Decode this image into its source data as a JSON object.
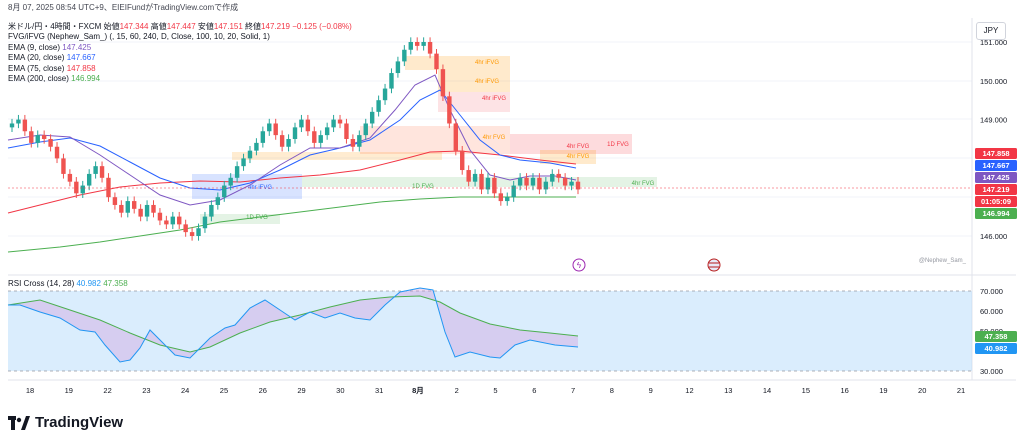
{
  "header": {
    "datetime_line": "8月 07, 2025 08:54 UTC+9、EIEIFundがTradingView.comで作成"
  },
  "legend": {
    "symbol": "米ドル/円・4時間・FXCM",
    "open_label": "始値",
    "open": "147.344",
    "high_label": "高値",
    "high": "147.447",
    "low_label": "安値",
    "low": "147.151",
    "close_label": "終値",
    "close": "147.219",
    "change": "−0.125 (−0.08%)",
    "fvg_line": "FVG/iFVG (Nephew_Sam_) (, 15, 60, 240, D, Close, 100, 10, 20, Solid, 1)",
    "ema9_label": "EMA (9, close)",
    "ema9": "147.425",
    "ema20_label": "EMA (20, close)",
    "ema20": "147.667",
    "ema75_label": "EMA (75, close)",
    "ema75": "147.858",
    "ema200_label": "EMA (200, close)",
    "ema200": "146.994"
  },
  "currency": "JPY",
  "price_axis": {
    "ticks": [
      {
        "label": "151.000",
        "value": 151.0
      },
      {
        "label": "150.000",
        "value": 150.0
      },
      {
        "label": "149.000",
        "value": 149.0
      },
      {
        "label": "146.000",
        "value": 146.0
      }
    ],
    "badges": [
      {
        "label": "147.858",
        "color": "#f23645",
        "value": 147.858
      },
      {
        "label": "147.667",
        "color": "#2962ff",
        "value": 147.667
      },
      {
        "label": "147.425",
        "color": "#7e57c2",
        "value": 147.425
      },
      {
        "label": "147.219",
        "color": "#f23645",
        "value": 147.219
      },
      {
        "label": "01:05:09",
        "color": "#f23645",
        "value": 147.219
      },
      {
        "label": "146.994",
        "color": "#4caf50",
        "value": 146.994
      }
    ]
  },
  "fvg_labels": [
    "4hr iFVG",
    "4hr iFVG",
    "4hr iFVG",
    "4hr iFVG",
    "4hr FVG",
    "1D FVG",
    "4hr FVG",
    "4hr FVG",
    "1D FVG",
    "4hr FVG",
    "1D FVG"
  ],
  "watermark": "@Nephew_Sam_",
  "rsi": {
    "label": "RSI Cross (14, 28)",
    "fast": "40.982",
    "slow": "47.358",
    "fast_color": "#2196f3",
    "slow_color": "#4caf50",
    "ticks": [
      {
        "label": "70.000",
        "value": 70
      },
      {
        "label": "60.000",
        "value": 60
      },
      {
        "label": "50.000",
        "value": 50
      },
      {
        "label": "30.000",
        "value": 30
      }
    ]
  },
  "time_axis": [
    "18",
    "19",
    "22",
    "23",
    "24",
    "25",
    "26",
    "29",
    "30",
    "31",
    "8月",
    "2",
    "5",
    "6",
    "7",
    "8",
    "9",
    "12",
    "13",
    "14",
    "15",
    "16",
    "19",
    "20",
    "21"
  ],
  "brand": "TradingView",
  "colors": {
    "up": "#26a69a",
    "down": "#ef5350",
    "ema9": "#7e57c2",
    "ema20": "#2962ff",
    "ema75": "#f23645",
    "ema200": "#4caf50"
  }
}
